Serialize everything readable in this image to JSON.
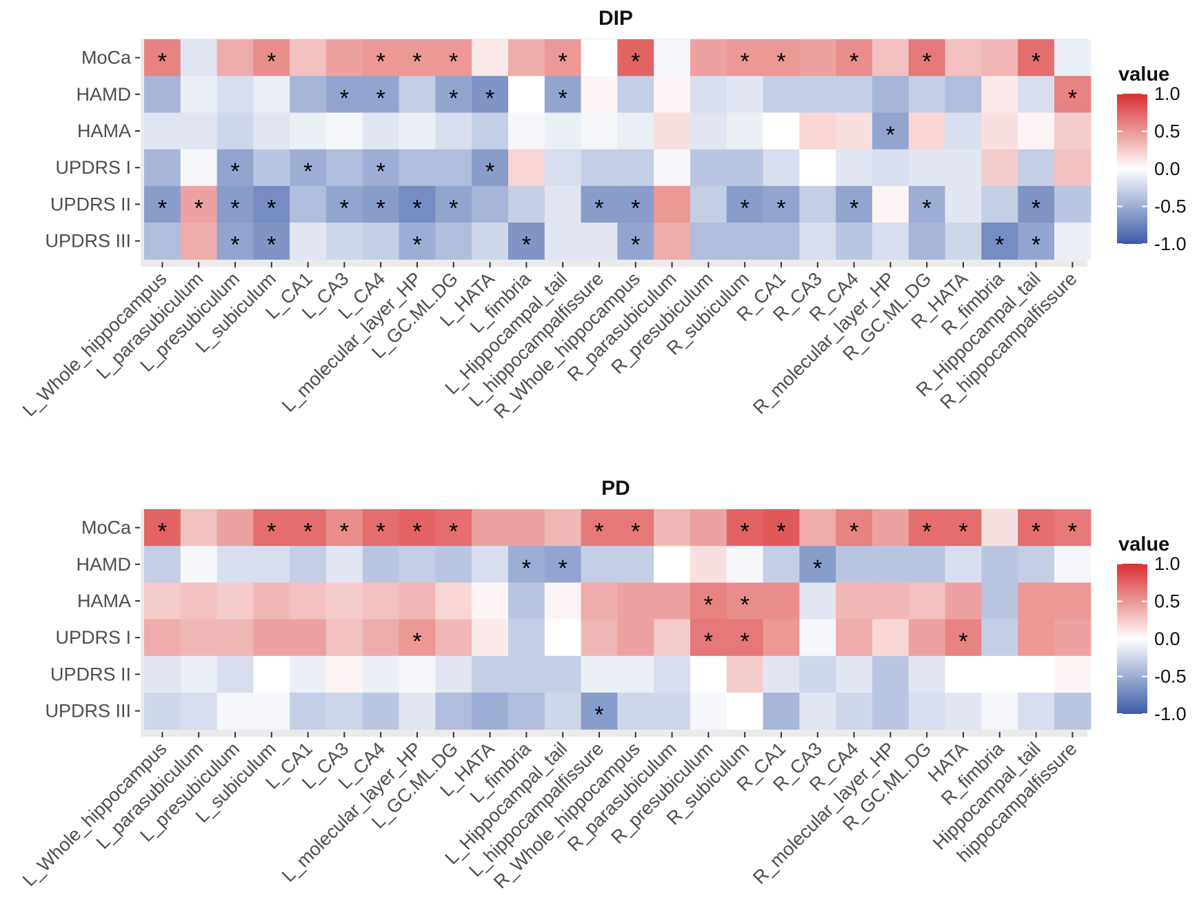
{
  "chart_data": [
    {
      "type": "heatmap",
      "title": "DIP",
      "rows": [
        "MoCa",
        "HAMD",
        "HAMA",
        "UPDRS I",
        "UPDRS II",
        "UPDRS III"
      ],
      "columns": [
        "L_Whole_hippocampus",
        "L_parasubiculum",
        "L_presubiculum",
        "L_subiculum",
        "L_CA1",
        "L_CA3",
        "L_CA4",
        "L_molecular_layer_HP",
        "L_GC.ML.DG",
        "L_HATA",
        "L_fimbria",
        "L_Hippocampal_tail",
        "L_hippocampalfissure",
        "R_Whole_hippocampus",
        "R_parasubiculum",
        "R_presubiculum",
        "R_subiculum",
        "R_CA1",
        "R_CA3",
        "R_CA4",
        "R_molecular_layer_HP",
        "R_GC.ML.DG",
        "R_HATA",
        "R_fimbria",
        "R_Hippocampal_tail",
        "R_hippocampalfissure"
      ],
      "values": [
        [
          0.6,
          -0.15,
          0.4,
          0.55,
          0.3,
          0.45,
          0.5,
          0.5,
          0.5,
          0.1,
          0.4,
          0.5,
          0.0,
          0.75,
          -0.05,
          0.45,
          0.5,
          0.5,
          0.45,
          0.55,
          0.3,
          0.65,
          0.3,
          0.35,
          0.7,
          -0.1
        ],
        [
          -0.45,
          -0.1,
          -0.2,
          -0.1,
          -0.45,
          -0.55,
          -0.55,
          -0.3,
          -0.55,
          -0.65,
          0.0,
          -0.55,
          0.05,
          -0.3,
          0.05,
          -0.2,
          -0.15,
          -0.3,
          -0.3,
          -0.3,
          -0.45,
          -0.3,
          -0.4,
          0.1,
          -0.2,
          0.6
        ],
        [
          -0.15,
          -0.15,
          -0.25,
          -0.15,
          -0.1,
          -0.05,
          -0.15,
          -0.1,
          -0.2,
          -0.3,
          -0.05,
          -0.1,
          -0.05,
          -0.1,
          0.15,
          -0.15,
          -0.1,
          0.0,
          0.2,
          0.15,
          -0.55,
          0.2,
          -0.2,
          0.15,
          0.05,
          0.25
        ],
        [
          -0.45,
          -0.05,
          -0.55,
          -0.35,
          -0.5,
          -0.4,
          -0.5,
          -0.4,
          -0.4,
          -0.6,
          0.2,
          -0.2,
          -0.3,
          -0.3,
          -0.05,
          -0.35,
          -0.35,
          -0.2,
          0.0,
          -0.15,
          -0.2,
          -0.15,
          -0.15,
          0.25,
          -0.3,
          0.3
        ],
        [
          -0.6,
          0.45,
          -0.6,
          -0.7,
          -0.4,
          -0.55,
          -0.6,
          -0.7,
          -0.55,
          -0.45,
          -0.3,
          -0.15,
          -0.6,
          -0.6,
          0.5,
          -0.3,
          -0.6,
          -0.55,
          -0.3,
          -0.55,
          0.05,
          -0.5,
          -0.15,
          -0.3,
          -0.65,
          -0.35
        ],
        [
          -0.4,
          0.4,
          -0.55,
          -0.65,
          -0.15,
          -0.25,
          -0.3,
          -0.5,
          -0.4,
          -0.25,
          -0.65,
          -0.15,
          -0.15,
          -0.55,
          0.4,
          -0.4,
          -0.4,
          -0.4,
          -0.2,
          -0.35,
          -0.2,
          -0.45,
          -0.25,
          -0.7,
          -0.55,
          -0.1
        ]
      ],
      "significant": [
        [
          0,
          3,
          6,
          7,
          8,
          11,
          13,
          16,
          17,
          19,
          21,
          24
        ],
        [
          5,
          6,
          8,
          9,
          11,
          25
        ],
        [
          20
        ],
        [
          2,
          4,
          6,
          9
        ],
        [
          0,
          1,
          2,
          3,
          5,
          6,
          7,
          8,
          12,
          13,
          16,
          17,
          19,
          21,
          24
        ],
        [
          2,
          3,
          7,
          10,
          13,
          23,
          24
        ]
      ],
      "star_symbol": "*",
      "legend": {
        "title": "value",
        "ticks": [
          "1.0",
          "0.5",
          "0.0",
          "-0.5",
          "-1.0"
        ],
        "range": [
          -1,
          1
        ]
      },
      "scale_colors": {
        "low": "#3b5ba8",
        "mid": "#ffffff",
        "high": "#d7302f"
      }
    },
    {
      "type": "heatmap",
      "title": "PD",
      "rows": [
        "MoCa",
        "HAMD",
        "HAMA",
        "UPDRS I",
        "UPDRS II",
        "UPDRS III"
      ],
      "columns": [
        "L_Whole_hippocampus",
        "L_parasubiculum",
        "L_presubiculum",
        "L_subiculum",
        "L_CA1",
        "L_CA3",
        "L_CA4",
        "L_molecular_layer_HP",
        "L_GC.ML.DG",
        "L_HATA",
        "L_fimbria",
        "L_Hippocampal_tail",
        "L_hippocampalfissure",
        "R_Whole_hippocampus",
        "R_parasubiculum",
        "R_presubiculum",
        "R_subiculum",
        "R_CA1",
        "R_CA3",
        "R_CA4",
        "R_molecular_layer_HP",
        "R_GC.ML.DG",
        "HATA",
        "R_fimbria",
        "Hippocampal_tail",
        "hippocampalfissure"
      ],
      "values": [
        [
          0.75,
          0.3,
          0.45,
          0.7,
          0.7,
          0.55,
          0.7,
          0.75,
          0.7,
          0.45,
          0.45,
          0.35,
          0.65,
          0.65,
          0.35,
          0.45,
          0.75,
          0.8,
          0.4,
          0.6,
          0.45,
          0.7,
          0.7,
          0.15,
          0.7,
          0.65
        ],
        [
          -0.3,
          -0.05,
          -0.2,
          -0.2,
          -0.3,
          -0.15,
          -0.35,
          -0.3,
          -0.35,
          -0.2,
          -0.5,
          -0.55,
          -0.3,
          -0.3,
          0.0,
          0.15,
          -0.05,
          -0.3,
          -0.6,
          -0.35,
          -0.35,
          -0.35,
          -0.2,
          -0.35,
          -0.3,
          -0.05
        ],
        [
          0.25,
          0.3,
          0.25,
          0.35,
          0.3,
          0.25,
          0.3,
          0.35,
          0.2,
          0.05,
          -0.35,
          0.05,
          0.4,
          0.45,
          0.45,
          0.6,
          0.55,
          0.55,
          -0.15,
          0.35,
          0.35,
          0.3,
          0.45,
          -0.35,
          0.5,
          0.5
        ],
        [
          0.4,
          0.35,
          0.35,
          0.45,
          0.45,
          0.3,
          0.4,
          0.5,
          0.35,
          0.1,
          -0.3,
          0.0,
          0.35,
          0.45,
          0.25,
          0.65,
          0.65,
          0.5,
          -0.05,
          0.4,
          0.2,
          0.45,
          0.6,
          -0.3,
          0.5,
          0.45
        ],
        [
          -0.15,
          -0.1,
          -0.2,
          0.0,
          -0.1,
          0.05,
          -0.1,
          -0.05,
          -0.15,
          -0.3,
          -0.3,
          -0.3,
          -0.1,
          -0.1,
          -0.2,
          0.0,
          0.25,
          -0.15,
          -0.25,
          -0.15,
          -0.35,
          -0.15,
          0.0,
          0.0,
          0.0,
          0.05
        ],
        [
          -0.25,
          -0.2,
          -0.05,
          -0.05,
          -0.3,
          -0.25,
          -0.35,
          -0.15,
          -0.4,
          -0.5,
          -0.4,
          -0.25,
          -0.6,
          -0.25,
          -0.25,
          -0.05,
          0.0,
          -0.45,
          -0.15,
          -0.25,
          -0.35,
          -0.2,
          -0.15,
          -0.05,
          -0.2,
          -0.35
        ]
      ],
      "significant": [
        [
          0,
          3,
          4,
          5,
          6,
          7,
          8,
          12,
          13,
          16,
          17,
          19,
          21,
          22,
          24,
          25
        ],
        [
          10,
          11,
          18
        ],
        [
          15,
          16
        ],
        [
          7,
          15,
          16,
          22
        ],
        [],
        [
          12
        ]
      ],
      "star_symbol": "*",
      "legend": {
        "title": "value",
        "ticks": [
          "1.0",
          "0.5",
          "0.0",
          "-0.5",
          "-1.0"
        ],
        "range": [
          -1,
          1
        ]
      },
      "scale_colors": {
        "low": "#3b5ba8",
        "mid": "#ffffff",
        "high": "#d7302f"
      }
    }
  ]
}
